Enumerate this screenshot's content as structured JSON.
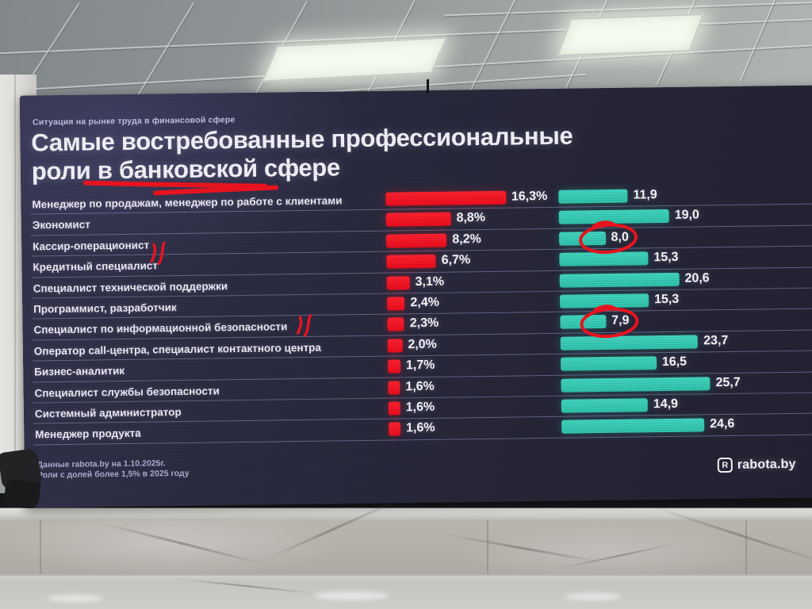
{
  "slide": {
    "eyebrow": "Ситуация на рынке труда в финансовой сфере",
    "title_line1": "Самые востребованные профессиональные",
    "title_line2_prefix": "роли в ",
    "title_line2_underlined": "банковской",
    "title_line2_suffix": " сфере",
    "footnote_line1": "Данные rabota.by на 1.10.2025г.",
    "footnote_line2": "Роли с долей более 1,5% в 2025 году",
    "logo": {
      "icon_letter": "R",
      "text": "rabota.by"
    },
    "colors": {
      "red": "#ef1420",
      "teal": "#36c9b3",
      "background": "#272739",
      "annotation": "#ef1420"
    }
  },
  "chart_data": {
    "type": "bar",
    "orientation": "horizontal",
    "title": "Самые востребованные профессиональные роли в банковской сфере",
    "categories": [
      "Менеджер по продажам, менеджер по работе с клиентами",
      "Экономист",
      "Кассир-операционист",
      "Кредитный специалист",
      "Специалист технической поддержки",
      "Программист, разработчик",
      "Специалист по информационной безопасности",
      "Оператор call-центра, специалист контактного центра",
      "Бизнес-аналитик",
      "Специалист службы безопасности",
      "Системный администратор",
      "Менеджер продукта"
    ],
    "series": [
      {
        "name": "red",
        "unit": "%",
        "values": [
          16.3,
          8.8,
          8.2,
          6.7,
          3.1,
          2.4,
          2.3,
          2.0,
          1.7,
          1.6,
          1.6,
          1.6
        ],
        "labels": [
          "16,3%",
          "8,8%",
          "8,2%",
          "6,7%",
          "3,1%",
          "2,4%",
          "2,3%",
          "2,0%",
          "1,7%",
          "1,6%",
          "1,6%",
          "1,6%"
        ]
      },
      {
        "name": "teal",
        "values": [
          11.9,
          19.0,
          8.0,
          15.3,
          20.6,
          15.3,
          7.9,
          23.7,
          16.5,
          25.7,
          14.9,
          24.6
        ],
        "labels": [
          "11,9",
          "19,0",
          "8,0",
          "15,3",
          "20,6",
          "15,3",
          "7,9",
          "23,7",
          "16,5",
          "25,7",
          "14,9",
          "24,6"
        ]
      }
    ],
    "annotations": {
      "circled_teal_values": [
        "8,0",
        "7,9"
      ],
      "circled_row_indexes": [
        2,
        6
      ],
      "squiggle_row_indexes": [
        2,
        6
      ],
      "underlined_title_word": "банковской"
    },
    "legend": "none",
    "grid": "row separators only"
  }
}
